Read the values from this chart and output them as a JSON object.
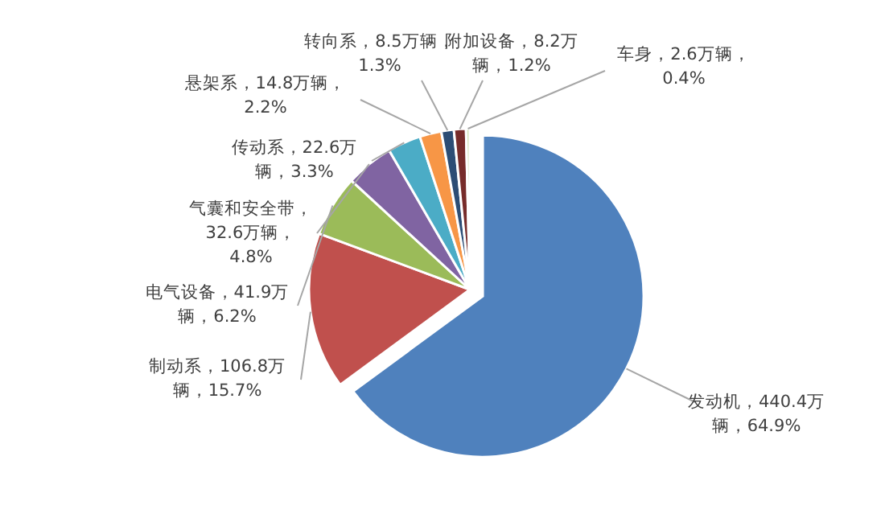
{
  "chart_data": {
    "type": "pie",
    "categories": [
      "发动机",
      "制动系",
      "电气设备",
      "气囊和安全带",
      "传动系",
      "悬架系",
      "转向系",
      "附加设备",
      "车身"
    ],
    "values": [
      440.4,
      106.8,
      41.9,
      32.6,
      22.6,
      14.8,
      8.5,
      8.2,
      2.6
    ],
    "value_labels": [
      "，440.4万辆，64.9%",
      "，106.8万辆，15.7%",
      "，41.9万辆，6.2%",
      "，32.6万辆，4.8%",
      "，22.6万辆，3.3%",
      "，14.8万辆，2.2%",
      "，8.5万辆，1.3%",
      "，8.2万辆，1.2%",
      "，2.6万辆，0.4%"
    ],
    "colors": [
      "#4f81bd",
      "#c0504d",
      "#9bbb59",
      "#8064a2",
      "#4bacc6",
      "#f79646",
      "#2c4d75",
      "#772c2a",
      "#d7e4bd"
    ],
    "legend": false
  }
}
